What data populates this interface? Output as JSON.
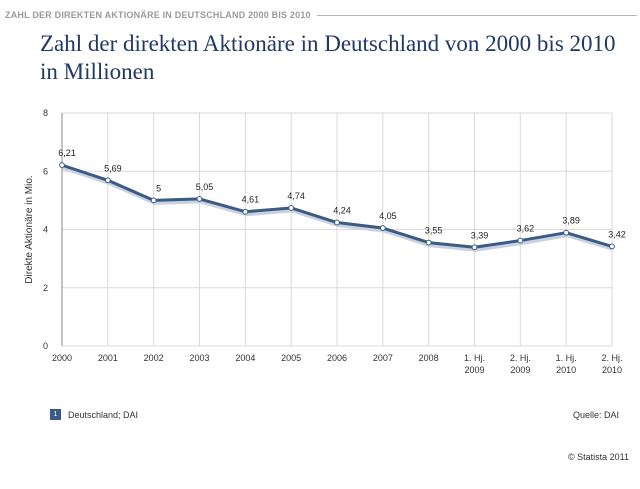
{
  "header": {
    "caption": "ZAHL DER DIREKTEN AKTIONÄRE IN DEUTSCHLAND 2000 BIS 2010"
  },
  "chart_data": {
    "type": "line",
    "title": "Zahl der direkten Aktionäre in Deutschland von 2000 bis 2010 in Millionen",
    "ylabel": "Direkte Aktionäre in Mio.",
    "xlabel": "",
    "ylim": [
      0,
      8
    ],
    "yticks": [
      "0",
      "2",
      "4",
      "6",
      "8"
    ],
    "categories": [
      [
        "2000"
      ],
      [
        "2001"
      ],
      [
        "2002"
      ],
      [
        "2003"
      ],
      [
        "2004"
      ],
      [
        "2005"
      ],
      [
        "2006"
      ],
      [
        "2007"
      ],
      [
        "2008"
      ],
      [
        "1. Hj.",
        "2009"
      ],
      [
        "2. Hj.",
        "2009"
      ],
      [
        "1. Hj.",
        "2010"
      ],
      [
        "2. Hj.",
        "2010"
      ]
    ],
    "series": [
      {
        "name": "Deutschland; DAI",
        "values": [
          6.21,
          5.69,
          5,
          5.05,
          4.61,
          4.74,
          4.24,
          4.05,
          3.55,
          3.39,
          3.62,
          3.89,
          3.42
        ],
        "labels": [
          "6,21",
          "5,69",
          "5",
          "5,05",
          "4,61",
          "4,74",
          "4,24",
          "4,05",
          "3,55",
          "3,39",
          "3,62",
          "3,89",
          "3,42"
        ]
      }
    ],
    "grid": true,
    "legend_position": "bottom-left",
    "colors": {
      "line": "#3b5a85",
      "grid": "#d9d9d9",
      "axis": "#888888"
    }
  },
  "legend": {
    "marker": "1",
    "label": "Deutschland; DAI"
  },
  "source": "Quelle: DAI",
  "copyright": "© Statista 2011"
}
